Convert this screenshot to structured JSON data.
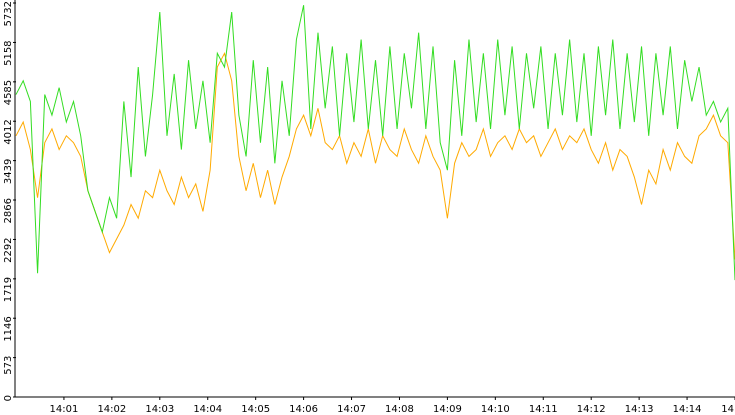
{
  "chart_data": {
    "type": "line",
    "x": [
      0,
      0.15,
      0.3,
      0.45,
      0.6,
      0.75,
      0.9,
      1.05,
      1.2,
      1.35,
      1.5,
      1.65,
      1.8,
      1.95,
      2.1,
      2.25,
      2.4,
      2.55,
      2.7,
      2.85,
      3,
      3.15,
      3.3,
      3.45,
      3.6,
      3.75,
      3.9,
      4.05,
      4.2,
      4.35,
      4.5,
      4.65,
      4.8,
      4.95,
      5.1,
      5.25,
      5.4,
      5.55,
      5.7,
      5.85,
      6,
      6.15,
      6.3,
      6.45,
      6.6,
      6.75,
      6.9,
      7.05,
      7.2,
      7.35,
      7.5,
      7.65,
      7.8,
      7.95,
      8.1,
      8.25,
      8.4,
      8.55,
      8.7,
      8.85,
      9,
      9.15,
      9.3,
      9.45,
      9.6,
      9.75,
      9.9,
      10.05,
      10.2,
      10.35,
      10.5,
      10.65,
      10.8,
      10.95,
      11.1,
      11.25,
      11.4,
      11.55,
      11.7,
      11.85,
      12,
      12.15,
      12.3,
      12.45,
      12.6,
      12.75,
      12.9,
      13.05,
      13.2,
      13.35,
      13.5,
      13.65,
      13.8,
      13.95,
      14.1,
      14.25,
      14.4,
      14.55,
      14.7,
      14.85,
      15
    ],
    "series": [
      {
        "color": "#33dd22",
        "values": [
          4400,
          4600,
          4300,
          1800,
          4400,
          4100,
          4500,
          4000,
          4300,
          3800,
          3000,
          2700,
          2400,
          2900,
          2600,
          4300,
          3200,
          4800,
          3500,
          4400,
          5600,
          3800,
          4700,
          3600,
          4900,
          3900,
          4600,
          3700,
          5000,
          4800,
          5600,
          4100,
          3500,
          4900,
          3700,
          4800,
          3400,
          4600,
          3800,
          5200,
          5700,
          3900,
          5300,
          4200,
          5100,
          3800,
          5000,
          4000,
          5200,
          3900,
          4900,
          3800,
          5100,
          3900,
          5000,
          4200,
          5300,
          3900,
          5100,
          3700,
          3300,
          4900,
          3800,
          5200,
          4000,
          5000,
          3900,
          5200,
          4100,
          5100,
          3900,
          5000,
          4200,
          5100,
          3900,
          5000,
          4100,
          5200,
          4000,
          5000,
          3800,
          5100,
          4100,
          5200,
          3900,
          5000,
          4000,
          5100,
          3800,
          5000,
          4100,
          5100,
          3900,
          4900,
          4300,
          4800,
          4100,
          4300,
          4000,
          4200,
          1700
        ]
      },
      {
        "color": "#ffaa00",
        "values": [
          3800,
          4000,
          3600,
          2900,
          3700,
          3900,
          3600,
          3800,
          3700,
          3500,
          3000,
          2700,
          2400,
          2100,
          2300,
          2500,
          2800,
          2600,
          3000,
          2900,
          3300,
          3000,
          2800,
          3200,
          2900,
          3100,
          2700,
          3300,
          4800,
          5000,
          4600,
          3500,
          3000,
          3400,
          2900,
          3300,
          2800,
          3200,
          3500,
          3900,
          4100,
          3800,
          4200,
          3700,
          3600,
          3800,
          3400,
          3700,
          3500,
          3900,
          3400,
          3800,
          3600,
          3500,
          3900,
          3600,
          3400,
          3800,
          3500,
          3300,
          2600,
          3400,
          3700,
          3500,
          3600,
          3900,
          3500,
          3700,
          3800,
          3600,
          3900,
          3700,
          3800,
          3500,
          3700,
          3900,
          3600,
          3800,
          3700,
          3900,
          3600,
          3400,
          3700,
          3300,
          3600,
          3500,
          3200,
          2800,
          3300,
          3100,
          3600,
          3300,
          3700,
          3500,
          3400,
          3800,
          3900,
          4100,
          3800,
          3700,
          2000
        ]
      }
    ],
    "xlim": [
      0,
      15
    ],
    "xticks": [
      {
        "value": 1,
        "label": "14:01"
      },
      {
        "value": 2,
        "label": "14:02"
      },
      {
        "value": 3,
        "label": "14:03"
      },
      {
        "value": 4,
        "label": "14:04"
      },
      {
        "value": 5,
        "label": "14:05"
      },
      {
        "value": 6,
        "label": "14:06"
      },
      {
        "value": 7,
        "label": "14:07"
      },
      {
        "value": 8,
        "label": "14:08"
      },
      {
        "value": 9,
        "label": "14:09"
      },
      {
        "value": 10,
        "label": "14:10"
      },
      {
        "value": 11,
        "label": "14:11"
      },
      {
        "value": 12,
        "label": "14:12"
      },
      {
        "value": 13,
        "label": "14:13"
      },
      {
        "value": 14,
        "label": "14:14"
      },
      {
        "value": 15,
        "label": "14"
      }
    ],
    "ylim": [
      0,
      5732
    ],
    "yticks": [
      0,
      573,
      1146,
      1719,
      2292,
      2866,
      3439,
      4012,
      4585,
      5158,
      5732
    ]
  }
}
